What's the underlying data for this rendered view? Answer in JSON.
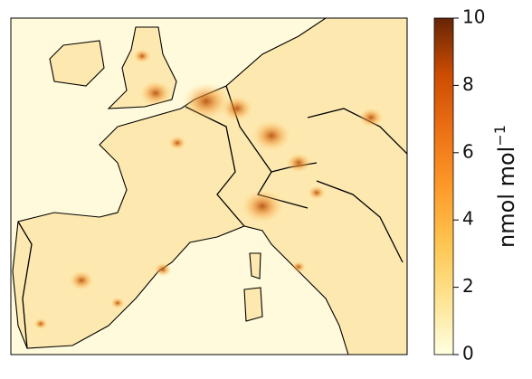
{
  "colorbar": {
    "label": "nmol mol",
    "label_superscript": "−1",
    "lim": [
      0,
      10
    ],
    "ticks": [
      0,
      2,
      4,
      6,
      8,
      10
    ],
    "colors": [
      "#ffffe0",
      "#fee391",
      "#fec44f",
      "#fe9929",
      "#ec7014",
      "#cc4c02",
      "#662506"
    ]
  }
}
